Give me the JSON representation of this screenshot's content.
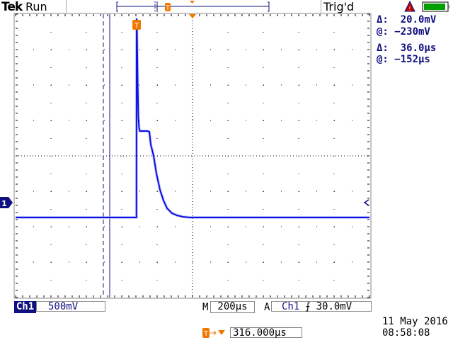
{
  "header": {
    "brand": "Tek",
    "acq_state": "Run",
    "trigger_state": "Trig'd"
  },
  "colors": {
    "trace": "#1010e0",
    "readout": "#101080",
    "trigger_marker": "#f07800",
    "battery": "#00a000",
    "warning": "#c00000"
  },
  "icons": {
    "warning": "warning-triangle-icon",
    "battery": "battery-icon",
    "ch1_marker": "ground-marker-icon",
    "trigger": "trigger-position-icon"
  },
  "battery_level": 0.9,
  "cursors": {
    "amplitude_delta": "Δ:  20.0mV",
    "amplitude_at": "@: −230mV",
    "time_delta": "Δ:  36.0µs",
    "time_at": "@: −152µs",
    "time_cursor_a_us": -188,
    "time_cursor_b_us": -152
  },
  "footer": {
    "channel": "Ch1",
    "volts_div": "500mV",
    "m_label": "M",
    "time_div": "200µs",
    "a_label": "A",
    "trig_source": "Ch1",
    "trig_slope": "⨍",
    "trig_level": "30.0mV",
    "trig_offset": "316.000µs",
    "date": "11 May 2016",
    "time": "08:58:08"
  },
  "chart_data": {
    "type": "line",
    "xlabel": "",
    "ylabel": "",
    "x_units": "µs",
    "y_units": "V",
    "volts_per_div": 0.5,
    "us_per_div": 200,
    "xlim": [
      -684,
      1316
    ],
    "ylim": [
      -1.34,
      2.66
    ],
    "grid": true,
    "series": [
      {
        "x": [
          -684,
          -300,
          -1,
          0,
          2,
          6,
          10,
          14,
          18,
          24,
          40,
          60,
          72,
          80,
          96,
          112,
          132,
          152,
          172,
          200,
          228,
          260,
          300,
          400,
          500,
          600,
          1316
        ],
        "y": [
          -0.21,
          -0.21,
          -0.21,
          2.6,
          2.4,
          1.7,
          1.2,
          1.05,
          1.01,
          1.01,
          1.01,
          1.01,
          1.0,
          0.82,
          0.66,
          0.41,
          0.18,
          0.03,
          -0.08,
          -0.15,
          -0.18,
          -0.2,
          -0.21,
          -0.21,
          -0.21,
          -0.21,
          -0.21
        ]
      }
    ]
  }
}
